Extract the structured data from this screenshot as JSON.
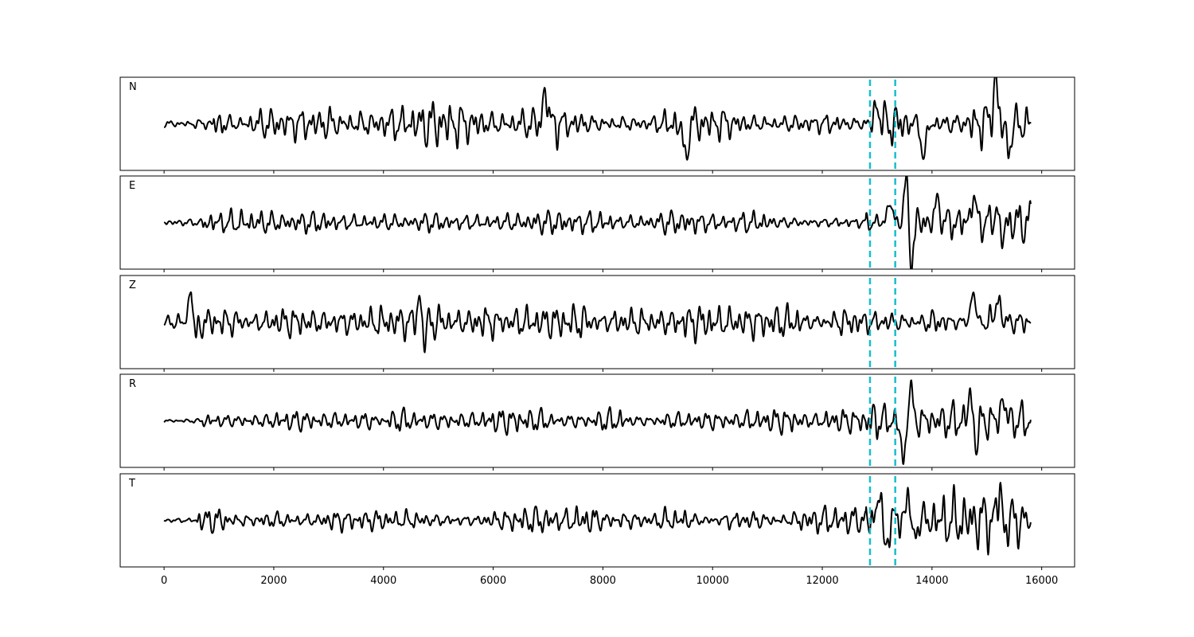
{
  "chart_data": {
    "type": "line",
    "title": "",
    "xlabel": "",
    "ylabel": "",
    "xlim": [
      -800,
      16600
    ],
    "x_ticks": [
      0,
      2000,
      4000,
      6000,
      8000,
      10000,
      12000,
      14000,
      16000
    ],
    "x_tick_labels": [
      "0",
      "2000",
      "4000",
      "6000",
      "8000",
      "10000",
      "12000",
      "14000",
      "16000"
    ],
    "n_samples": 15800,
    "line_color": "#000000",
    "pick_color": "#17becf",
    "picks": [
      12870,
      13330
    ],
    "grid": false,
    "panels": [
      {
        "label": "N",
        "ylim": [
          -1.1,
          1.1
        ],
        "segments": [
          {
            "start": 0,
            "end": 900,
            "amp": 0.12
          },
          {
            "start": 900,
            "end": 4500,
            "amp": 0.35
          },
          {
            "start": 4500,
            "end": 7200,
            "amp": 0.55
          },
          {
            "start": 7200,
            "end": 12800,
            "amp": 0.35
          },
          {
            "start": 12800,
            "end": 15800,
            "amp": 0.6
          }
        ],
        "peaks": [
          {
            "x": 6950,
            "y": 0.75
          },
          {
            "x": 9500,
            "y": -0.8
          },
          {
            "x": 13000,
            "y": 0.45
          },
          {
            "x": 13850,
            "y": -0.8
          },
          {
            "x": 15150,
            "y": 1.0
          },
          {
            "x": 15400,
            "y": -0.6
          }
        ]
      },
      {
        "label": "E",
        "ylim": [
          -1.1,
          1.1
        ],
        "segments": [
          {
            "start": 0,
            "end": 700,
            "amp": 0.08
          },
          {
            "start": 700,
            "end": 12800,
            "amp": 0.25
          },
          {
            "start": 12800,
            "end": 15800,
            "amp": 0.5
          }
        ],
        "peaks": [
          {
            "x": 13230,
            "y": 0.5
          },
          {
            "x": 13530,
            "y": 0.95
          },
          {
            "x": 13620,
            "y": -0.9
          },
          {
            "x": 14100,
            "y": 0.5
          },
          {
            "x": 14750,
            "y": 0.6
          },
          {
            "x": 15200,
            "y": 0.6
          },
          {
            "x": 15250,
            "y": -0.65
          }
        ]
      },
      {
        "label": "Z",
        "ylim": [
          -1.1,
          1.1
        ],
        "segments": [
          {
            "start": 0,
            "end": 500,
            "amp": 0.15
          },
          {
            "start": 500,
            "end": 12800,
            "amp": 0.35
          },
          {
            "start": 12800,
            "end": 15800,
            "amp": 0.4
          }
        ],
        "peaks": [
          {
            "x": 500,
            "y": 1.0
          },
          {
            "x": 560,
            "y": -0.65
          },
          {
            "x": 4680,
            "y": 1.0
          },
          {
            "x": 4720,
            "y": -0.85
          },
          {
            "x": 14750,
            "y": 0.7
          },
          {
            "x": 15200,
            "y": 0.6
          }
        ]
      },
      {
        "label": "R",
        "ylim": [
          -1.1,
          1.1
        ],
        "segments": [
          {
            "start": 0,
            "end": 700,
            "amp": 0.05
          },
          {
            "start": 700,
            "end": 12800,
            "amp": 0.25
          },
          {
            "start": 12800,
            "end": 15800,
            "amp": 0.45
          }
        ],
        "peaks": [
          {
            "x": 13600,
            "y": 0.75
          },
          {
            "x": 13480,
            "y": -1.0
          },
          {
            "x": 14700,
            "y": 0.6
          },
          {
            "x": 14800,
            "y": -0.5
          },
          {
            "x": 15300,
            "y": 0.5
          }
        ]
      },
      {
        "label": "T",
        "ylim": [
          -1.1,
          1.1
        ],
        "segments": [
          {
            "start": 0,
            "end": 600,
            "amp": 0.05
          },
          {
            "start": 600,
            "end": 12800,
            "amp": 0.3
          },
          {
            "start": 12800,
            "end": 15800,
            "amp": 0.55
          }
        ],
        "peaks": [
          {
            "x": 13050,
            "y": 0.9
          },
          {
            "x": 13130,
            "y": -0.85
          },
          {
            "x": 13580,
            "y": 0.95
          },
          {
            "x": 13640,
            "y": -0.8
          },
          {
            "x": 15250,
            "y": 0.95
          },
          {
            "x": 15300,
            "y": -0.5
          }
        ]
      }
    ]
  }
}
